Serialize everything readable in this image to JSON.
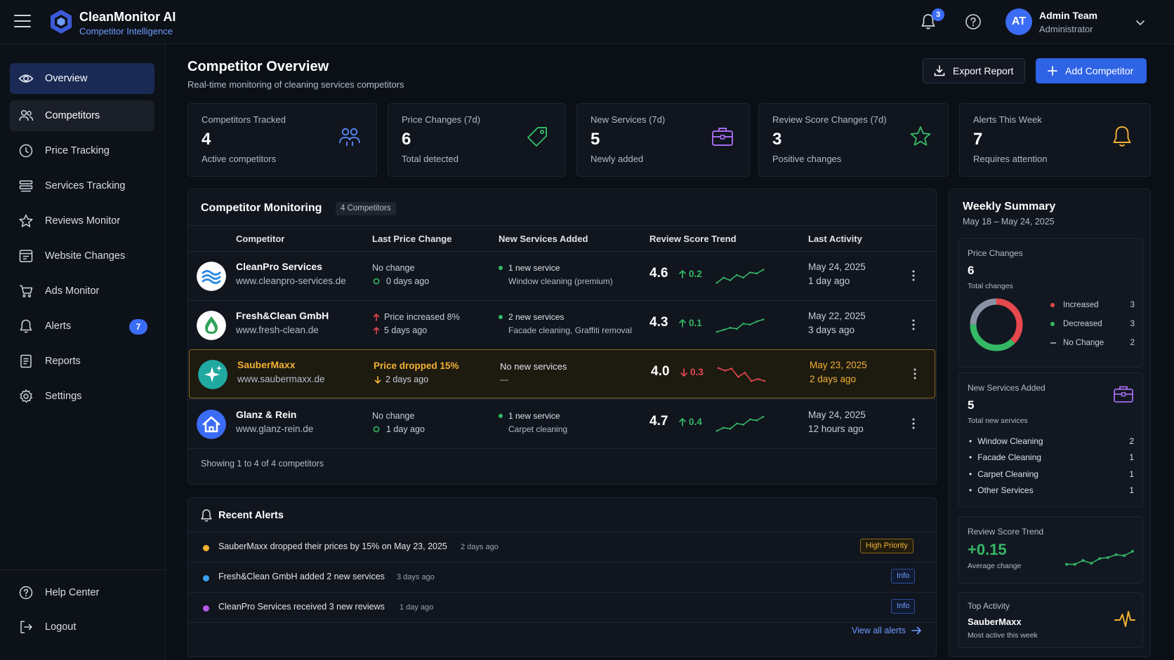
{
  "header": {
    "app_name": "CleanMonitor AI",
    "app_subtitle": "Competitor Intelligence",
    "notification_count": "3",
    "user_initials": "AT",
    "user_name": "Admin Team",
    "user_role": "Administrator"
  },
  "sidebar": {
    "items": [
      {
        "label": "Overview",
        "icon": "eye-icon"
      },
      {
        "label": "Competitors",
        "icon": "users-icon"
      },
      {
        "label": "Price Tracking",
        "icon": "clock-dollar-icon"
      },
      {
        "label": "Services Tracking",
        "icon": "services-icon"
      },
      {
        "label": "Reviews Monitor",
        "icon": "star-icon"
      },
      {
        "label": "Website Changes",
        "icon": "website-icon"
      },
      {
        "label": "Ads Monitor",
        "icon": "cart-icon"
      },
      {
        "label": "Alerts",
        "icon": "bell-icon",
        "badge": "7"
      },
      {
        "label": "Reports",
        "icon": "report-icon"
      },
      {
        "label": "Settings",
        "icon": "gear-icon"
      }
    ],
    "footer": [
      {
        "label": "Help Center",
        "icon": "help-icon"
      },
      {
        "label": "Logout",
        "icon": "logout-icon"
      }
    ]
  },
  "page": {
    "title": "Competitor Overview",
    "subtitle": "Real-time monitoring of cleaning services competitors",
    "export_label": "Export Report",
    "add_label": "Add Competitor"
  },
  "stats": [
    {
      "label": "Competitors Tracked",
      "value": "4",
      "sub": "Active competitors",
      "icon": "users-icon",
      "color": "#5b8cff"
    },
    {
      "label": "Price Changes (7d)",
      "value": "6",
      "sub": "Total detected",
      "icon": "tag-icon",
      "color": "#35b866"
    },
    {
      "label": "New Services (7d)",
      "value": "5",
      "sub": "Newly added",
      "icon": "briefcase-icon",
      "color": "#a56cf0"
    },
    {
      "label": "Review Score Changes (7d)",
      "value": "3",
      "sub": "Positive changes",
      "icon": "star-icon",
      "color": "#35b866"
    },
    {
      "label": "Alerts This Week",
      "value": "7",
      "sub": "Requires attention",
      "icon": "bell-icon",
      "color": "#f2b233"
    }
  ],
  "monitoring": {
    "title": "Competitor Monitoring",
    "badge": "4 Competitors",
    "columns": [
      "Competitor",
      "Last Price Change",
      "New Services Added",
      "Review Score Trend",
      "Last Activity"
    ],
    "rows": [
      {
        "name": "CleanPro Services",
        "url": "www.cleanpro-services.de",
        "price_main": "No change",
        "price_sub": "0 days ago",
        "services_main": "1 new service",
        "services_sub": "Window cleaning (premium)",
        "score": "4.6",
        "delta": "0.2",
        "trend": [
          3,
          2,
          2.5,
          1.5,
          2,
          1,
          1.2,
          0.5
        ],
        "date": "May 24, 2025",
        "rel": "1 day ago"
      },
      {
        "name": "Fresh&Clean GmbH",
        "url": "www.fresh-clean.de",
        "price_main": "Price increased 8%",
        "price_sub": "5 days ago",
        "services_main": "2 new services",
        "services_sub": "Facade cleaning, Graffiti removal",
        "score": "4.3",
        "delta": "0.1",
        "trend": [
          3,
          2.6,
          2.2,
          2.4,
          1.4,
          1.6,
          1,
          0.6
        ],
        "date": "May 22, 2025",
        "rel": "3 days ago"
      },
      {
        "name": "SauberMaxx",
        "url": "www.saubermaxx.de",
        "price_main": "Price dropped 15%",
        "price_sub": "2 days ago",
        "services_main": "No new services",
        "services_sub": "—",
        "score": "4.0",
        "delta": "0.3",
        "trend": [
          0.5,
          1,
          0.6,
          2.2,
          1.4,
          3,
          2.6,
          3
        ],
        "date": "May 23, 2025",
        "rel": "2 days ago"
      },
      {
        "name": "Glanz & Rein",
        "url": "www.glanz-rein.de",
        "price_main": "No change",
        "price_sub": "1 day ago",
        "services_main": "1 new service",
        "services_sub": "Carpet cleaning",
        "score": "4.7",
        "delta": "0.4",
        "trend": [
          3,
          2.4,
          2.6,
          1.6,
          1.8,
          0.8,
          1,
          0.3
        ],
        "date": "May 24, 2025",
        "rel": "12 hours ago"
      }
    ],
    "showing": "Showing 1 to 4 of 4 competitors"
  },
  "alerts": {
    "title": "Recent Alerts",
    "items": [
      {
        "text": "SauberMaxx dropped their prices by 15% on May 23, 2025",
        "time": "2 days ago",
        "tag": "High Priority",
        "color": "#f2b233"
      },
      {
        "text": "Fresh&Clean GmbH added 2 new services",
        "time": "3 days ago",
        "tag": "Info",
        "color": "#3aa0f0"
      },
      {
        "text": "CleanPro Services received 3 new reviews",
        "time": "1 day ago",
        "tag": "Info",
        "color": "#b45ae8"
      }
    ],
    "view_all": "View all alerts"
  },
  "weekly": {
    "title": "Weekly Summary",
    "range": "May 18 – May 24, 2025",
    "price": {
      "label": "Price Changes",
      "value": "6",
      "sub": "Total changes",
      "legend": [
        {
          "label": "Increased",
          "count": "3",
          "color": "#e5484d"
        },
        {
          "label": "Decreased",
          "count": "3",
          "color": "#35b866"
        },
        {
          "label": "No Change",
          "count": "2",
          "color": "#8a93a3"
        }
      ]
    },
    "services": {
      "label": "New Services Added",
      "value": "5",
      "sub": "Total new services",
      "items": [
        {
          "label": "Window Cleaning",
          "count": "2"
        },
        {
          "label": "Facade Cleaning",
          "count": "1"
        },
        {
          "label": "Carpet Cleaning",
          "count": "1"
        },
        {
          "label": "Other Services",
          "count": "1"
        }
      ]
    },
    "review": {
      "label": "Review Score Trend",
      "value": "+0.15",
      "sub": "Average change",
      "trend": [
        3,
        3,
        2.2,
        2.8,
        1.8,
        1.6,
        1,
        1.2,
        0.3
      ]
    },
    "top": {
      "label": "Top Activity",
      "name": "SauberMaxx",
      "sub": "Most active this week"
    }
  }
}
